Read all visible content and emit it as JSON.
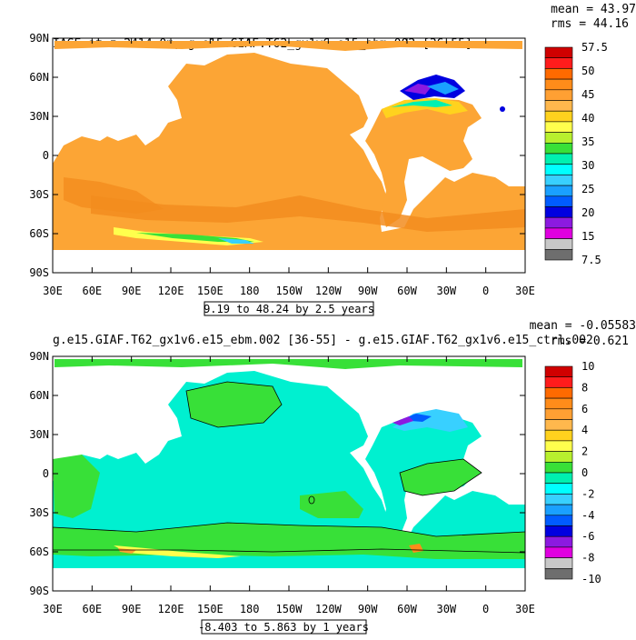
{
  "chart_data": [
    {
      "type": "heatmap",
      "title": "IAGE at z=2414.0m, g.e15.GIAF.T62_gx1v6.e15_ebm.002 [36-55]",
      "stat_mean": "mean = 43.97",
      "stat_rms": "rms = 44.16",
      "y_ticks": [
        "90N",
        "60N",
        "30N",
        "0",
        "30S",
        "60S",
        "90S"
      ],
      "x_ticks": [
        "30E",
        "60E",
        "90E",
        "120E",
        "150E",
        "180",
        "150W",
        "120W",
        "90W",
        "60W",
        "30W",
        "0",
        "30E"
      ],
      "range_label": "9.19 to 48.24 by 2.5 years",
      "colorbar_labels": [
        "57.5",
        "50",
        "45",
        "40",
        "35",
        "30",
        "25",
        "20",
        "15",
        "7.5"
      ],
      "colorbar_colors": [
        "#d00000",
        "#ff1c1c",
        "#ff6a00",
        "#ff8c1a",
        "#ffa033",
        "#ffb84d",
        "#ffd21e",
        "#ffff4d",
        "#b8f02e",
        "#38e038",
        "#00f0b0",
        "#00ffff",
        "#38d0ff",
        "#1aa0ff",
        "#005cff",
        "#0000e0",
        "#8c1ae0",
        "#e000e0",
        "#c8c8c8",
        "#6e6e6e"
      ],
      "field_color": "#fca535"
    },
    {
      "type": "heatmap",
      "title": "g.e15.GIAF.T62_gx1v6.e15_ebm.002 [36-55] - g.e15.GIAF.T62_gx1v6.e15_ctrl.002",
      "stat_mean": "mean = -0.05583",
      "stat_rms": "rms = 0.621",
      "y_ticks": [
        "90N",
        "60N",
        "30N",
        "0",
        "30S",
        "60S",
        "90S"
      ],
      "x_ticks": [
        "30E",
        "60E",
        "90E",
        "120E",
        "150E",
        "180",
        "150W",
        "120W",
        "90W",
        "60W",
        "30W",
        "0",
        "30E"
      ],
      "range_label": "-8.403 to 5.863 by 1 years",
      "colorbar_labels": [
        "10",
        "8",
        "6",
        "4",
        "2",
        "0",
        "-2",
        "-4",
        "-6",
        "-8",
        "-10"
      ],
      "colorbar_colors": [
        "#d00000",
        "#ff1c1c",
        "#ff6a00",
        "#ff8c1a",
        "#ffa033",
        "#ffb84d",
        "#ffd21e",
        "#ffff4d",
        "#b8f02e",
        "#38e038",
        "#00f0b0",
        "#00ffff",
        "#38d0ff",
        "#1aa0ff",
        "#005cff",
        "#0000e0",
        "#8c1ae0",
        "#e000e0",
        "#c8c8c8",
        "#6e6e6e"
      ],
      "field_color": "#00f0d0",
      "field_color_2": "#38e038"
    }
  ]
}
